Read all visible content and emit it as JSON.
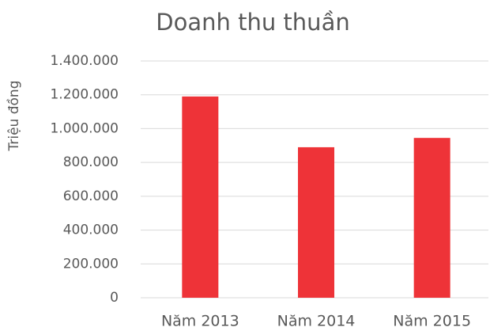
{
  "chart_data": {
    "type": "bar",
    "title": "Doanh thu thuần",
    "y_label": "Triệu đồng",
    "categories": [
      "Năm 2013",
      "Năm 2014",
      "Năm 2015"
    ],
    "values": [
      1190000,
      890000,
      945000
    ],
    "color": "#ee3338",
    "ylim": [
      0,
      1400000
    ],
    "yticks": [
      0,
      {
        "value": 200000,
        "label": "200.000"
      },
      {
        "value": 400000,
        "label": "400.000"
      },
      {
        "value": 600000,
        "label": "600.000"
      },
      {
        "value": 800000,
        "label": "800.000"
      },
      {
        "value": 1000000,
        "label": "1.000.000"
      },
      {
        "value": 1200000,
        "label": "1.200.000"
      },
      {
        "value": 1400000,
        "label": "1.400.000"
      }
    ],
    "grid": true
  }
}
